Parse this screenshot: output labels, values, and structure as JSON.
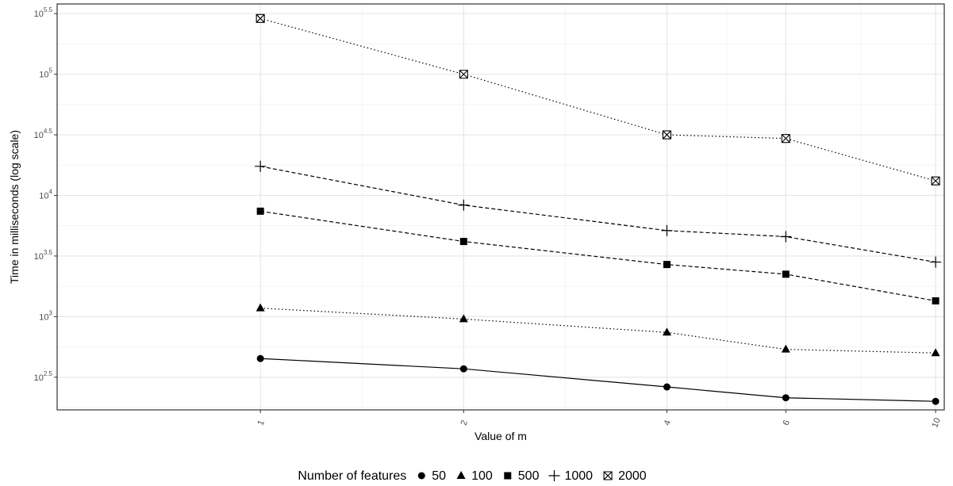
{
  "chart_data": {
    "type": "line",
    "title": "",
    "xlabel": "Value of m",
    "ylabel": "Time in milliseconds (log scale)",
    "y_scale": "log10",
    "x": [
      1,
      2,
      4,
      6,
      10
    ],
    "x_tick_labels": [
      "1",
      "2",
      "4",
      "6",
      "10"
    ],
    "xlim": [
      0.5,
      10.3
    ],
    "ylim": [
      170,
      380000
    ],
    "y_ticks": [
      {
        "base": "10",
        "exp": "2.5"
      },
      {
        "base": "10",
        "exp": "3"
      },
      {
        "base": "10",
        "exp": "3.5"
      },
      {
        "base": "10",
        "exp": "4"
      },
      {
        "base": "10",
        "exp": "4.5"
      },
      {
        "base": "10",
        "exp": "5"
      },
      {
        "base": "10",
        "exp": "5.5"
      }
    ],
    "legend": {
      "title": "Number of features",
      "position": "bottom",
      "entries": [
        "50",
        "100",
        "500",
        "1000",
        "2000"
      ]
    },
    "grid": true,
    "series": [
      {
        "name": "50",
        "marker": "circle",
        "line": "solid",
        "values": [
          451,
          371,
          263,
          214,
          200
        ]
      },
      {
        "name": "100",
        "marker": "triangle",
        "line": "dotted",
        "values": [
          1175,
          955,
          741,
          537,
          501
        ]
      },
      {
        "name": "500",
        "marker": "square",
        "line": "dashed",
        "values": [
          7413,
          4169,
          2692,
          2239,
          1349
        ]
      },
      {
        "name": "1000",
        "marker": "plus",
        "line": "dashed",
        "values": [
          17378,
          8318,
          5129,
          4571,
          2818
        ]
      },
      {
        "name": "2000",
        "marker": "boxx",
        "line": "dotted",
        "values": [
          288403,
          100000,
          31623,
          29512,
          13183
        ]
      }
    ]
  }
}
